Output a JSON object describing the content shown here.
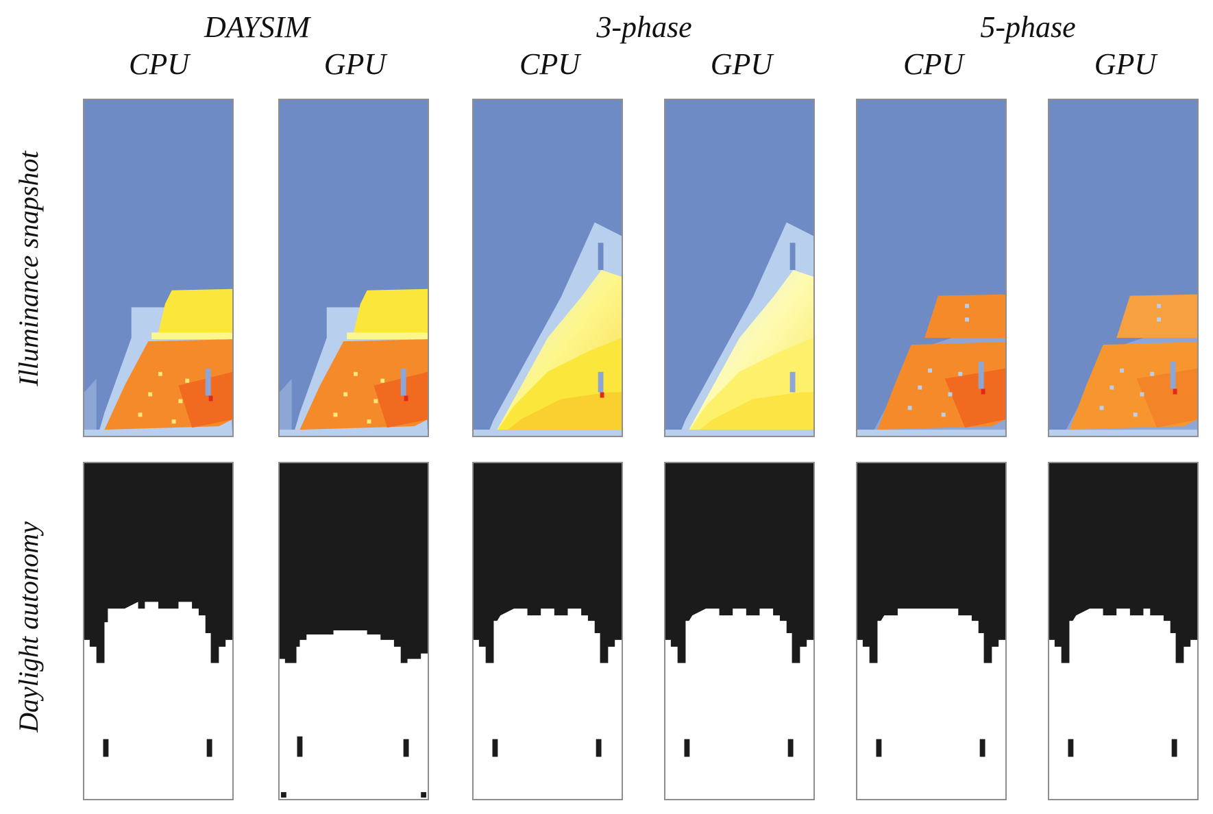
{
  "groups": [
    {
      "id": "daysim",
      "title": "DAYSIM"
    },
    {
      "id": "three_phase",
      "title": "3-phase"
    },
    {
      "id": "five_phase",
      "title": "5-phase"
    }
  ],
  "columns": [
    {
      "id": "daysim-cpu",
      "label": "CPU"
    },
    {
      "id": "daysim-gpu",
      "label": "GPU"
    },
    {
      "id": "three-phase-cpu",
      "label": "CPU"
    },
    {
      "id": "three-phase-gpu",
      "label": "GPU"
    },
    {
      "id": "five-phase-cpu",
      "label": "CPU"
    },
    {
      "id": "five-phase-gpu",
      "label": "GPU"
    }
  ],
  "rows": [
    {
      "id": "illuminance",
      "label": "Illuminance snapshot"
    },
    {
      "id": "autonomy",
      "label": "Daylight autonomy"
    }
  ],
  "colors": {
    "background_blue": "#6e8bc5",
    "light_blue": "#b8cfee",
    "yellow": "#fbe63c",
    "pale_yellow": "#fdf68a",
    "orange": "#f58a2a",
    "deep_orange": "#f06a20",
    "red": "#e0281c",
    "black": "#1b1b1b",
    "white": "#ffffff",
    "frame": "#8e8e8e"
  }
}
